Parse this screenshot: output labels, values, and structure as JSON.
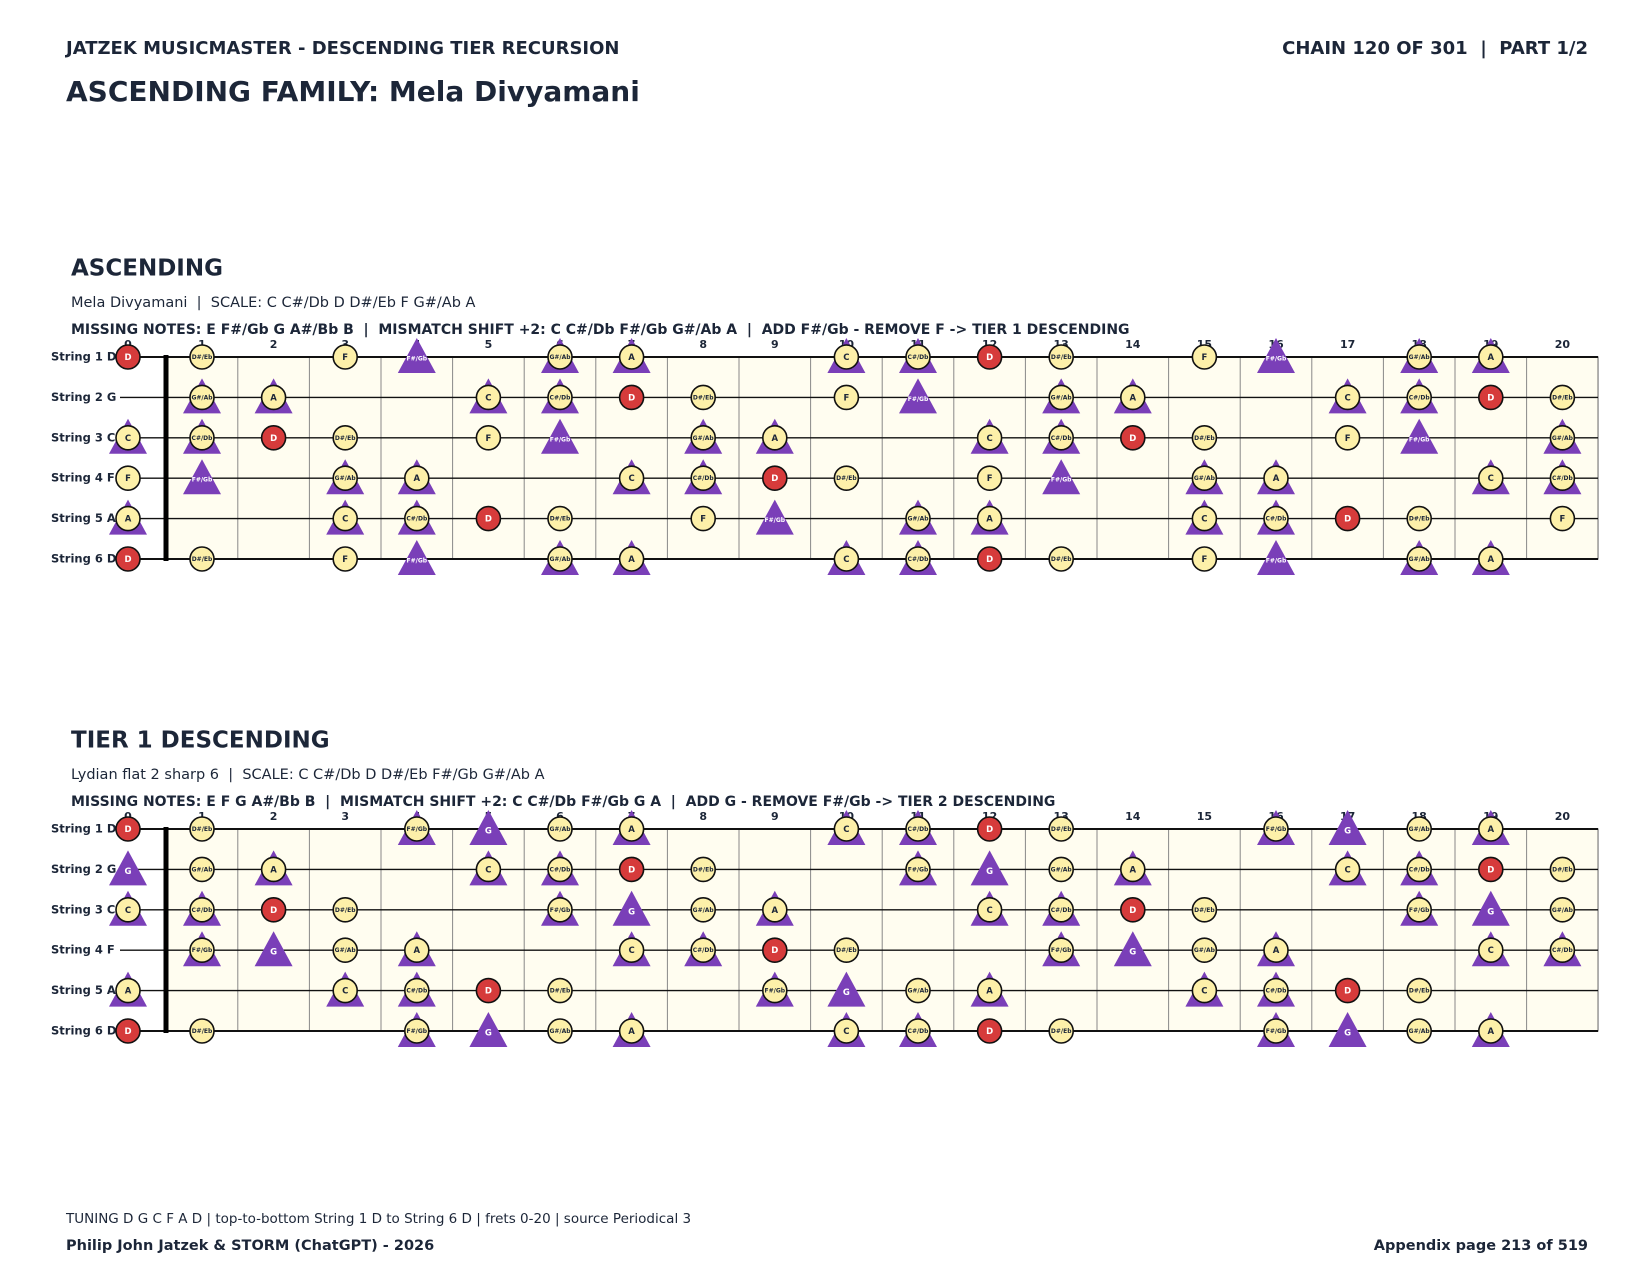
{
  "header": {
    "left": "JATZEK MUSICMASTER - DESCENDING TIER RECURSION",
    "right": "CHAIN 120 OF 301  |  PART 1/2",
    "title": "ASCENDING FAMILY: Mela Divyamani"
  },
  "frets": [
    0,
    1,
    2,
    3,
    4,
    5,
    6,
    7,
    8,
    9,
    10,
    11,
    12,
    13,
    14,
    15,
    16,
    17,
    18,
    19,
    20
  ],
  "string_labels": [
    "String 1 D",
    "String 2 G",
    "String 3 C",
    "String 4 F",
    "String 5 A",
    "String 6 D"
  ],
  "diagrams": [
    {
      "title": "ASCENDING",
      "subtitle": "Mela Divyamani  |  SCALE: C C#/Db D D#/Eb F G#/Ab A",
      "missing": "MISSING NOTES: E F#/Gb G A#/Bb B  |  MISMATCH SHIFT +2: C C#/Db F#/Gb G#/Ab A  |  ADD F#/Gb - REMOVE F -> TIER 1 DESCENDING",
      "strings": [
        {
          "notes": [
            "D",
            "D#/Eb",
            null,
            "F",
            "F#/Gb",
            null,
            "G#/Ab",
            "A",
            null,
            null,
            "C",
            "C#/Db",
            "D",
            "D#/Eb",
            null,
            "F",
            "F#/Gb",
            null,
            "G#/Ab",
            "A",
            null
          ],
          "kinds": [
            "root",
            "scale",
            null,
            "scale",
            "shift",
            null,
            "both",
            "both",
            null,
            null,
            "both",
            "both",
            "root",
            "scale",
            null,
            "scale",
            "shift",
            null,
            "both",
            "both",
            null
          ]
        },
        {
          "notes": [
            null,
            "G#/Ab",
            "A",
            null,
            null,
            "C",
            "C#/Db",
            "D",
            "D#/Eb",
            null,
            "F",
            "F#/Gb",
            null,
            "G#/Ab",
            "A",
            null,
            null,
            "C",
            "C#/Db",
            "D",
            "D#/Eb"
          ],
          "kinds": [
            null,
            "both",
            "both",
            null,
            null,
            "both",
            "both",
            "root",
            "scale",
            null,
            "scale",
            "shift",
            null,
            "both",
            "both",
            null,
            null,
            "both",
            "both",
            "root",
            "scale"
          ]
        },
        {
          "notes": [
            "C",
            "C#/Db",
            "D",
            "D#/Eb",
            null,
            "F",
            "F#/Gb",
            null,
            "G#/Ab",
            "A",
            null,
            null,
            "C",
            "C#/Db",
            "D",
            "D#/Eb",
            null,
            "F",
            "F#/Gb",
            null,
            "G#/Ab"
          ],
          "kinds": [
            "both",
            "both",
            "root",
            "scale",
            null,
            "scale",
            "shift",
            null,
            "both",
            "both",
            null,
            null,
            "both",
            "both",
            "root",
            "scale",
            null,
            "scale",
            "shift",
            null,
            "both"
          ]
        },
        {
          "notes": [
            "F",
            "F#/Gb",
            null,
            "G#/Ab",
            "A",
            null,
            null,
            "C",
            "C#/Db",
            "D",
            "D#/Eb",
            null,
            "F",
            "F#/Gb",
            null,
            "G#/Ab",
            "A",
            null,
            null,
            "C",
            "C#/Db"
          ],
          "kinds": [
            "scale",
            "shift",
            null,
            "both",
            "both",
            null,
            null,
            "both",
            "both",
            "root",
            "scale",
            null,
            "scale",
            "shift",
            null,
            "both",
            "both",
            null,
            null,
            "both",
            "both"
          ]
        },
        {
          "notes": [
            "A",
            null,
            null,
            "C",
            "C#/Db",
            "D",
            "D#/Eb",
            null,
            "F",
            "F#/Gb",
            null,
            "G#/Ab",
            "A",
            null,
            null,
            "C",
            "C#/Db",
            "D",
            "D#/Eb",
            null,
            "F"
          ],
          "kinds": [
            "both",
            null,
            null,
            "both",
            "both",
            "root",
            "scale",
            null,
            "scale",
            "shift",
            null,
            "both",
            "both",
            null,
            null,
            "both",
            "both",
            "root",
            "scale",
            null,
            "scale"
          ]
        },
        {
          "notes": [
            "D",
            "D#/Eb",
            null,
            "F",
            "F#/Gb",
            null,
            "G#/Ab",
            "A",
            null,
            null,
            "C",
            "C#/Db",
            "D",
            "D#/Eb",
            null,
            "F",
            "F#/Gb",
            null,
            "G#/Ab",
            "A",
            null
          ],
          "kinds": [
            "root",
            "scale",
            null,
            "scale",
            "shift",
            null,
            "both",
            "both",
            null,
            null,
            "both",
            "both",
            "root",
            "scale",
            null,
            "scale",
            "shift",
            null,
            "both",
            "both",
            null
          ]
        }
      ]
    },
    {
      "title": "TIER 1 DESCENDING",
      "subtitle": "Lydian flat 2 sharp 6  |  SCALE: C C#/Db D D#/Eb F#/Gb G#/Ab A",
      "missing": "MISSING NOTES: E F G A#/Bb B  |  MISMATCH SHIFT +2: C C#/Db F#/Gb G A  |  ADD G - REMOVE F#/Gb -> TIER 2 DESCENDING",
      "strings": [
        {
          "notes": [
            "D",
            "D#/Eb",
            null,
            null,
            "F#/Gb",
            "G",
            "G#/Ab",
            "A",
            null,
            null,
            "C",
            "C#/Db",
            "D",
            "D#/Eb",
            null,
            null,
            "F#/Gb",
            "G",
            "G#/Ab",
            "A",
            null
          ],
          "kinds": [
            "root",
            "scale",
            null,
            null,
            "both",
            "shift",
            "scale",
            "both",
            null,
            null,
            "both",
            "both",
            "root",
            "scale",
            null,
            null,
            "both",
            "shift",
            "scale",
            "both",
            null
          ]
        },
        {
          "notes": [
            "G",
            "G#/Ab",
            "A",
            null,
            null,
            "C",
            "C#/Db",
            "D",
            "D#/Eb",
            null,
            null,
            "F#/Gb",
            "G",
            "G#/Ab",
            "A",
            null,
            null,
            "C",
            "C#/Db",
            "D",
            "D#/Eb"
          ],
          "kinds": [
            "shift",
            "scale",
            "both",
            null,
            null,
            "both",
            "both",
            "root",
            "scale",
            null,
            null,
            "both",
            "shift",
            "scale",
            "both",
            null,
            null,
            "both",
            "both",
            "root",
            "scale"
          ]
        },
        {
          "notes": [
            "C",
            "C#/Db",
            "D",
            "D#/Eb",
            null,
            null,
            "F#/Gb",
            "G",
            "G#/Ab",
            "A",
            null,
            null,
            "C",
            "C#/Db",
            "D",
            "D#/Eb",
            null,
            null,
            "F#/Gb",
            "G",
            "G#/Ab"
          ],
          "kinds": [
            "both",
            "both",
            "root",
            "scale",
            null,
            null,
            "both",
            "shift",
            "scale",
            "both",
            null,
            null,
            "both",
            "both",
            "root",
            "scale",
            null,
            null,
            "both",
            "shift",
            "scale"
          ]
        },
        {
          "notes": [
            null,
            "F#/Gb",
            "G",
            "G#/Ab",
            "A",
            null,
            null,
            "C",
            "C#/Db",
            "D",
            "D#/Eb",
            null,
            null,
            "F#/Gb",
            "G",
            "G#/Ab",
            "A",
            null,
            null,
            "C",
            "C#/Db"
          ],
          "kinds": [
            null,
            "both",
            "shift",
            "scale",
            "both",
            null,
            null,
            "both",
            "both",
            "root",
            "scale",
            null,
            null,
            "both",
            "shift",
            "scale",
            "both",
            null,
            null,
            "both",
            "both"
          ]
        },
        {
          "notes": [
            "A",
            null,
            null,
            "C",
            "C#/Db",
            "D",
            "D#/Eb",
            null,
            null,
            "F#/Gb",
            "G",
            "G#/Ab",
            "A",
            null,
            null,
            "C",
            "C#/Db",
            "D",
            "D#/Eb",
            null,
            null
          ],
          "kinds": [
            "both",
            null,
            null,
            "both",
            "both",
            "root",
            "scale",
            null,
            null,
            "both",
            "shift",
            "scale",
            "both",
            null,
            null,
            "both",
            "both",
            "root",
            "scale",
            null,
            null
          ]
        },
        {
          "notes": [
            "D",
            "D#/Eb",
            null,
            null,
            "F#/Gb",
            "G",
            "G#/Ab",
            "A",
            null,
            null,
            "C",
            "C#/Db",
            "D",
            "D#/Eb",
            null,
            null,
            "F#/Gb",
            "G",
            "G#/Ab",
            "A",
            null
          ],
          "kinds": [
            "root",
            "scale",
            null,
            null,
            "both",
            "shift",
            "scale",
            "both",
            null,
            null,
            "both",
            "both",
            "root",
            "scale",
            null,
            null,
            "both",
            "shift",
            "scale",
            "both",
            null
          ]
        }
      ]
    }
  ],
  "footer": {
    "note": "TUNING D G C F A D | top-to-bottom String 1 D to String 6 D | frets 0-20 | source Periodical 3",
    "credit": "Philip John Jatzek & STORM (ChatGPT) - 2026",
    "page": "Appendix page 213 of 519"
  }
}
